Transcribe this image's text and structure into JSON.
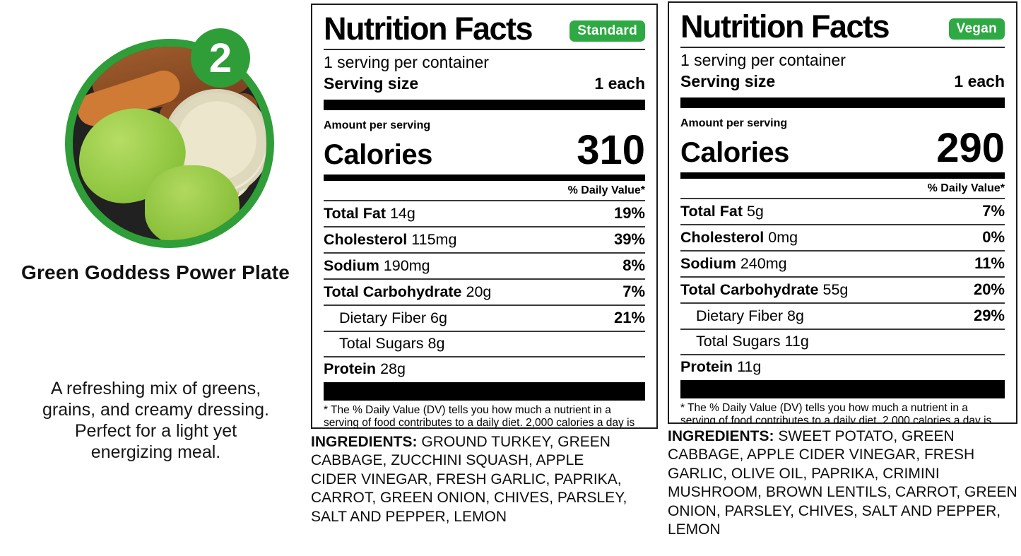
{
  "colors": {
    "badge_green": "#2ea944",
    "photo_green": "#2f9e38"
  },
  "meal": {
    "number": "2",
    "title": "Green Goddess Power Plate",
    "description": "A refreshing mix of greens, grains, and creamy dressing. Perfect for a light yet energizing meal."
  },
  "labels": [
    {
      "badge": "Standard",
      "title": "Nutrition Facts",
      "servings_per_container": "1 serving per container",
      "serving_size_label": "Serving size",
      "serving_size_value": "1 each",
      "amount_per_serving_label": "Amount per serving",
      "calories_label": "Calories",
      "calories": "310",
      "daily_value_header": "% Daily Value*",
      "rows": [
        {
          "name": "Total Fat",
          "amount": "14g",
          "dv": "19%"
        },
        {
          "name": "Cholesterol",
          "amount": "115mg",
          "dv": "39%"
        },
        {
          "name": "Sodium",
          "amount": "190mg",
          "dv": "8%"
        },
        {
          "name": "Total Carbohydrate",
          "amount": "20g",
          "dv": "7%"
        },
        {
          "name": "Dietary Fiber",
          "amount": "6g",
          "dv": "21%"
        },
        {
          "name": "Total Sugars",
          "amount": "8g",
          "dv": ""
        },
        {
          "name": "Protein",
          "amount": "28g",
          "dv": ""
        }
      ],
      "footnote": "* The % Daily Value (DV) tells you how much a nutrient in a serving of food contributes to a daily diet. 2,000 calories a day is used for general nutrition advice.",
      "ingredients_label": "INGREDIENTS:",
      "ingredients_text": "GROUND TURKEY, GREEN CABBAGE, ZUCCHINI SQUASH, APPLE CIDER VINEGAR, FRESH GARLIC, PAPRIKA, CARROT, GREEN ONION, CHIVES, PARSLEY, SALT AND PEPPER, LEMON"
    },
    {
      "badge": "Vegan",
      "title": "Nutrition Facts",
      "servings_per_container": "1 serving per container",
      "serving_size_label": "Serving size",
      "serving_size_value": "1 each",
      "amount_per_serving_label": "Amount per serving",
      "calories_label": "Calories",
      "calories": "290",
      "daily_value_header": "% Daily Value*",
      "rows": [
        {
          "name": "Total Fat",
          "amount": "5g",
          "dv": "7%"
        },
        {
          "name": "Cholesterol",
          "amount": "0mg",
          "dv": "0%"
        },
        {
          "name": "Sodium",
          "amount": "240mg",
          "dv": "11%"
        },
        {
          "name": "Total Carbohydrate",
          "amount": "55g",
          "dv": "20%"
        },
        {
          "name": "Dietary Fiber",
          "amount": "8g",
          "dv": "29%"
        },
        {
          "name": "Total Sugars",
          "amount": "11g",
          "dv": ""
        },
        {
          "name": "Protein",
          "amount": "11g",
          "dv": ""
        }
      ],
      "footnote": "* The % Daily Value (DV) tells you how much a nutrient in a serving of food contributes to a daily diet. 2,000 calories a day is used for general nutrition advice.",
      "ingredients_label": "INGREDIENTS:",
      "ingredients_text": "SWEET POTATO, GREEN CABBAGE, APPLE CIDER VINEGAR, FRESH GARLIC, OLIVE OIL, PAPRIKA, CRIMINI MUSHROOM, BROWN LENTILS, CARROT, GREEN ONION, PARSLEY, CHIVES, SALT AND PEPPER, LEMON"
    }
  ]
}
